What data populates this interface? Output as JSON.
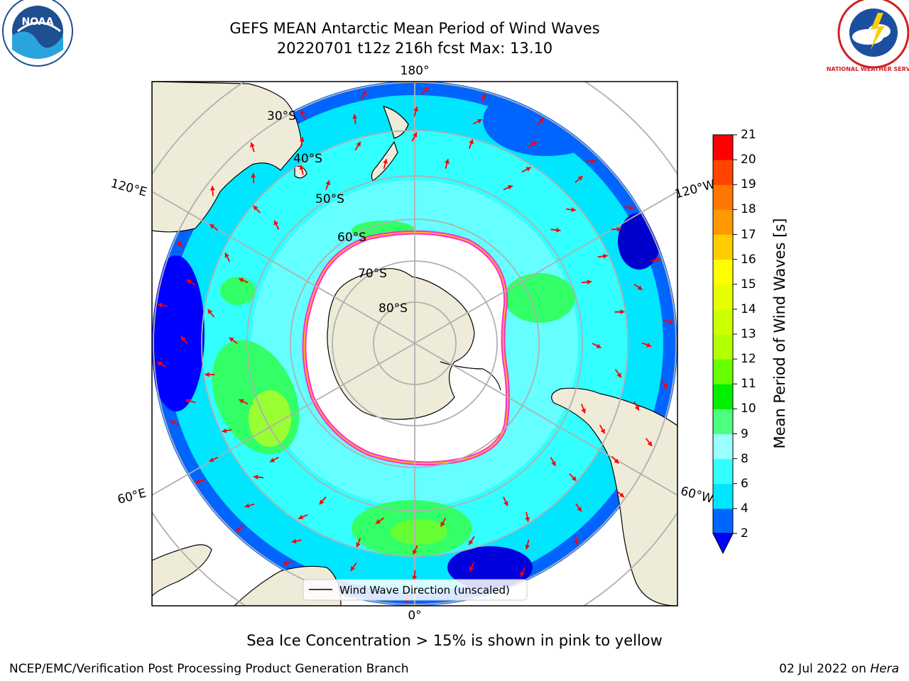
{
  "title": {
    "line1": "GEFS MEAN Antarctic Mean Period of Wind Waves",
    "line2": "20220701 t12z 216h fcst   Max: 13.10"
  },
  "logos": {
    "left": {
      "icon": "noaa-logo",
      "text": "NOAA"
    },
    "right": {
      "icon": "national-weather-service-logo",
      "text": "NATIONAL WEATHER SERVICE"
    }
  },
  "map": {
    "projection": "south-polar-stereographic",
    "meridian_labels": {
      "top": "180°",
      "bottom": "0°",
      "upper_left": "120°E",
      "upper_right": "120°W",
      "lower_left": "60°E",
      "lower_right": "60°W"
    },
    "latitude_labels": [
      "30°S",
      "40°S",
      "50°S",
      "60°S",
      "70°S",
      "80°S"
    ],
    "legend_label": "Wind Wave Direction (unscaled)",
    "colors": {
      "land": "#eeecd9",
      "ocean_low": "#0064ff",
      "ocean_mid": "#00ffff",
      "ocean_green": "#33ff66",
      "sea_ice": "#ff33cc",
      "arrows": "#ff0000",
      "grid": "#b0b0b0"
    }
  },
  "colorbar": {
    "title": "Mean Period of Wind Waves [s]",
    "ticks": [
      "2",
      "4",
      "6",
      "8",
      "9",
      "10",
      "11",
      "12",
      "13",
      "14",
      "15",
      "16",
      "17",
      "18",
      "19",
      "20",
      "21"
    ],
    "colors": [
      "#0064ff",
      "#00e6ff",
      "#33ffff",
      "#99ffff",
      "#4dff80",
      "#00f000",
      "#66ff00",
      "#b3ff00",
      "#ccff00",
      "#e6ff00",
      "#ffff00",
      "#ffcc00",
      "#ff9900",
      "#ff7700",
      "#ff4400",
      "#ff0000"
    ],
    "extend_color": "#0000ff"
  },
  "footer": {
    "note": "Sea Ice Concentration > 15% is shown in pink to yellow",
    "credit": "NCEP/EMC/Verification Post Processing Product Generation Branch",
    "date": "02 Jul 2022 on",
    "host": "Hera"
  }
}
